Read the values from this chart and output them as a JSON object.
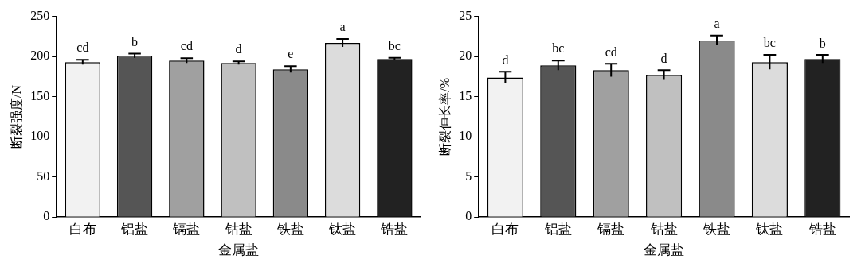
{
  "chart_data": [
    {
      "type": "bar",
      "xlabel": "金属盐",
      "ylabel": "断裂强度/N",
      "categories": [
        "白布",
        "铝盐",
        "镉盐",
        "钴盐",
        "铁盐",
        "钛盐",
        "锆盐"
      ],
      "values": [
        193,
        201,
        195,
        192,
        184,
        217,
        197
      ],
      "errors": [
        3,
        2.5,
        3,
        2,
        4,
        5,
        1.5
      ],
      "colors": [
        "#f2f2f2",
        "#555555",
        "#a0a0a0",
        "#c0c0c0",
        "#8a8a8a",
        "#dcdcdc",
        "#222222"
      ],
      "ylim": [
        0,
        250
      ],
      "yticks": [
        0,
        50,
        100,
        150,
        200,
        250
      ],
      "grid": false,
      "legend": false,
      "annotations": [
        {
          "text": "cd",
          "x": "白布",
          "y": 196
        },
        {
          "text": "b",
          "x": "铝盐",
          "y": 203.5
        },
        {
          "text": "cd",
          "x": "镉盐",
          "y": 198
        },
        {
          "text": "d",
          "x": "钴盐",
          "y": 194
        },
        {
          "text": "e",
          "x": "铁盐",
          "y": 188
        },
        {
          "text": "a",
          "x": "钛盐",
          "y": 222
        },
        {
          "text": "bc",
          "x": "锆盐",
          "y": 198.5
        }
      ]
    },
    {
      "type": "bar",
      "xlabel": "金属盐",
      "ylabel": "断裂伸长率/%",
      "categories": [
        "白布",
        "铝盐",
        "镉盐",
        "钴盐",
        "铁盐",
        "钛盐",
        "锆盐"
      ],
      "values": [
        17.4,
        18.9,
        18.3,
        17.7,
        22.0,
        19.3,
        19.7
      ],
      "errors": [
        0.7,
        0.6,
        0.8,
        0.6,
        0.6,
        0.9,
        0.5
      ],
      "colors": [
        "#f2f2f2",
        "#555555",
        "#a0a0a0",
        "#c0c0c0",
        "#8a8a8a",
        "#dcdcdc",
        "#222222"
      ],
      "ylim": [
        0,
        25
      ],
      "yticks": [
        0,
        5,
        10,
        15,
        20,
        25
      ],
      "grid": false,
      "legend": false,
      "annotations": [
        {
          "text": "d",
          "x": "白布",
          "y": 18.1
        },
        {
          "text": "bc",
          "x": "铝盐",
          "y": 19.5
        },
        {
          "text": "cd",
          "x": "镉盐",
          "y": 19.05
        },
        {
          "text": "d",
          "x": "钴盐",
          "y": 18.25
        },
        {
          "text": "a",
          "x": "铁盐",
          "y": 22.6
        },
        {
          "text": "bc",
          "x": "钛盐",
          "y": 20.2
        },
        {
          "text": "b",
          "x": "锆盐",
          "y": 20.15
        }
      ]
    }
  ]
}
